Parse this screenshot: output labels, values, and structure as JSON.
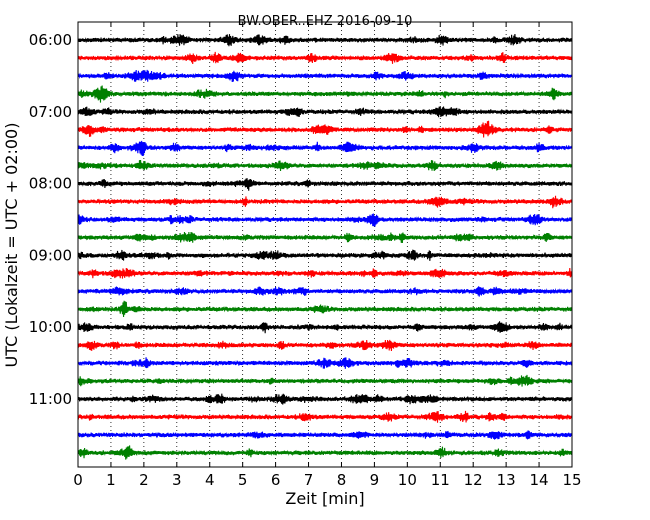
{
  "chart_data": {
    "type": "line",
    "title": "BW.OBER..EHZ 2016-09-10",
    "xlabel": "Zeit  [min]",
    "ylabel": "UTC (Lokalzeit = UTC + 02:00)",
    "xlim": [
      0,
      15
    ],
    "xticks": [
      0,
      1,
      2,
      3,
      4,
      5,
      6,
      7,
      8,
      9,
      10,
      11,
      12,
      13,
      14,
      15
    ],
    "ytick_labels": [
      "06:00",
      "07:00",
      "08:00",
      "09:00",
      "10:00",
      "11:00"
    ],
    "grid": "vertical dotted at each minute",
    "trace_interval_min": 15,
    "trace_colors": [
      "#000000",
      "#ff0000",
      "#0000ff",
      "#008000"
    ],
    "series": [
      {
        "start": "06:00",
        "color": "#000000"
      },
      {
        "start": "06:15",
        "color": "#ff0000"
      },
      {
        "start": "06:30",
        "color": "#0000ff"
      },
      {
        "start": "06:45",
        "color": "#008000"
      },
      {
        "start": "07:00",
        "color": "#000000"
      },
      {
        "start": "07:15",
        "color": "#ff0000"
      },
      {
        "start": "07:30",
        "color": "#0000ff"
      },
      {
        "start": "07:45",
        "color": "#008000"
      },
      {
        "start": "08:00",
        "color": "#000000"
      },
      {
        "start": "08:15",
        "color": "#ff0000"
      },
      {
        "start": "08:30",
        "color": "#0000ff"
      },
      {
        "start": "08:45",
        "color": "#008000"
      },
      {
        "start": "09:00",
        "color": "#000000"
      },
      {
        "start": "09:15",
        "color": "#ff0000"
      },
      {
        "start": "09:30",
        "color": "#0000ff"
      },
      {
        "start": "09:45",
        "color": "#008000"
      },
      {
        "start": "10:00",
        "color": "#000000"
      },
      {
        "start": "10:15",
        "color": "#ff0000"
      },
      {
        "start": "10:30",
        "color": "#0000ff"
      },
      {
        "start": "10:45",
        "color": "#008000"
      },
      {
        "start": "11:00",
        "color": "#000000"
      },
      {
        "start": "11:15",
        "color": "#ff0000"
      },
      {
        "start": "11:30",
        "color": "#0000ff"
      },
      {
        "start": "11:45",
        "color": "#008000"
      }
    ]
  }
}
